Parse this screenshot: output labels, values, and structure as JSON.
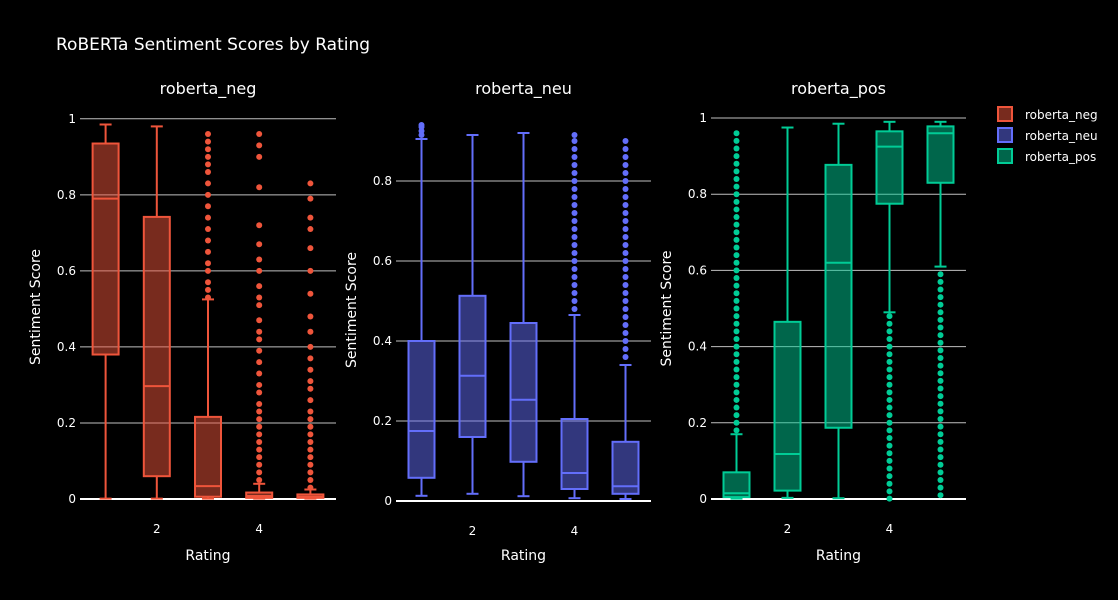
{
  "chart_data": {
    "type": "box",
    "title": "RoBERTa Sentiment Scores by Rating",
    "colors": {
      "background": "#000000",
      "grid": "#bfbfbf",
      "roberta_neg": "#ef553b",
      "roberta_neu": "#636efa",
      "roberta_pos": "#00cc96"
    },
    "legend": {
      "position": "top-right",
      "entries": [
        "roberta_neg",
        "roberta_neu",
        "roberta_pos"
      ]
    },
    "panels": [
      {
        "name": "roberta_neg",
        "title": "roberta_neg",
        "xlabel": "Rating",
        "ylabel": "Sentiment Score",
        "xlim": [
          0.5,
          5.5
        ],
        "ylim": [
          0,
          1.01
        ],
        "xticks": [
          2,
          4
        ],
        "yticks": [
          0,
          0.2,
          0.4,
          0.6,
          0.8,
          1
        ],
        "ytick_labels": [
          "0",
          "0.2",
          "0.4",
          "0.6",
          "0.8",
          "1"
        ],
        "boxes": [
          {
            "x": 1,
            "min": 0.001,
            "q1": 0.38,
            "median": 0.79,
            "q3": 0.935,
            "max": 0.985,
            "outliers": []
          },
          {
            "x": 2,
            "min": 0.001,
            "q1": 0.06,
            "median": 0.297,
            "q3": 0.742,
            "max": 0.98,
            "outliers": []
          },
          {
            "x": 3,
            "min": 0.001,
            "q1": 0.006,
            "median": 0.034,
            "q3": 0.216,
            "max": 0.525,
            "outliers": [
              0.53,
              0.55,
              0.57,
              0.6,
              0.62,
              0.65,
              0.68,
              0.71,
              0.74,
              0.77,
              0.8,
              0.83,
              0.86,
              0.88,
              0.9,
              0.92,
              0.94,
              0.96
            ]
          },
          {
            "x": 4,
            "min": 0.001,
            "q1": 0.003,
            "median": 0.008,
            "q3": 0.017,
            "max": 0.04,
            "outliers": [
              0.05,
              0.07,
              0.09,
              0.11,
              0.13,
              0.15,
              0.17,
              0.19,
              0.21,
              0.23,
              0.25,
              0.28,
              0.3,
              0.33,
              0.36,
              0.39,
              0.42,
              0.44,
              0.47,
              0.51,
              0.53,
              0.56,
              0.6,
              0.63,
              0.67,
              0.72,
              0.82,
              0.9,
              0.93,
              0.96
            ]
          },
          {
            "x": 5,
            "min": 0.001,
            "q1": 0.003,
            "median": 0.006,
            "q3": 0.012,
            "max": 0.025,
            "outliers": [
              0.03,
              0.05,
              0.07,
              0.09,
              0.11,
              0.13,
              0.15,
              0.17,
              0.19,
              0.21,
              0.23,
              0.26,
              0.29,
              0.31,
              0.34,
              0.37,
              0.4,
              0.44,
              0.48,
              0.54,
              0.6,
              0.66,
              0.71,
              0.74,
              0.79,
              0.83
            ]
          }
        ]
      },
      {
        "name": "roberta_neu",
        "title": "roberta_neu",
        "xlabel": "Rating",
        "ylabel": "Sentiment Score",
        "xlim": [
          0.5,
          5.5
        ],
        "ylim": [
          0,
          0.955
        ],
        "xticks": [
          2,
          4
        ],
        "yticks": [
          0,
          0.2,
          0.4,
          0.6,
          0.8
        ],
        "ytick_labels": [
          "0",
          "0.2",
          "0.4",
          "0.6",
          "0.8"
        ],
        "boxes": [
          {
            "x": 1,
            "min": 0.013,
            "q1": 0.058,
            "median": 0.175,
            "q3": 0.4,
            "max": 0.905,
            "outliers": [
              0.915,
              0.925,
              0.935,
              0.94
            ]
          },
          {
            "x": 2,
            "min": 0.018,
            "q1": 0.16,
            "median": 0.313,
            "q3": 0.513,
            "max": 0.915,
            "outliers": []
          },
          {
            "x": 3,
            "min": 0.012,
            "q1": 0.098,
            "median": 0.253,
            "q3": 0.445,
            "max": 0.92,
            "outliers": []
          },
          {
            "x": 4,
            "min": 0.007,
            "q1": 0.03,
            "median": 0.07,
            "q3": 0.205,
            "max": 0.465,
            "outliers": [
              0.48,
              0.5,
              0.52,
              0.54,
              0.56,
              0.58,
              0.6,
              0.62,
              0.64,
              0.66,
              0.68,
              0.7,
              0.72,
              0.74,
              0.76,
              0.78,
              0.8,
              0.82,
              0.84,
              0.86,
              0.88,
              0.9,
              0.915
            ]
          },
          {
            "x": 5,
            "min": 0.005,
            "q1": 0.018,
            "median": 0.037,
            "q3": 0.148,
            "max": 0.34,
            "outliers": [
              0.36,
              0.38,
              0.4,
              0.42,
              0.44,
              0.46,
              0.48,
              0.5,
              0.52,
              0.54,
              0.56,
              0.58,
              0.6,
              0.62,
              0.64,
              0.66,
              0.68,
              0.7,
              0.72,
              0.74,
              0.76,
              0.78,
              0.8,
              0.82,
              0.84,
              0.86,
              0.88,
              0.9
            ]
          }
        ]
      },
      {
        "name": "roberta_pos",
        "title": "roberta_pos",
        "xlabel": "Rating",
        "ylabel": "Sentiment Score",
        "xlim": [
          0.5,
          5.5
        ],
        "ylim": [
          0,
          1.0
        ],
        "xticks": [
          2,
          4
        ],
        "yticks": [
          0,
          0.2,
          0.4,
          0.6,
          0.8,
          1
        ],
        "ytick_labels": [
          "0",
          "0.2",
          "0.4",
          "0.6",
          "0.8",
          "1"
        ],
        "boxes": [
          {
            "x": 1,
            "min": 0.001,
            "q1": 0.005,
            "median": 0.015,
            "q3": 0.07,
            "max": 0.17,
            "outliers": [
              0.18,
              0.2,
              0.22,
              0.24,
              0.26,
              0.28,
              0.3,
              0.32,
              0.34,
              0.36,
              0.38,
              0.4,
              0.42,
              0.44,
              0.46,
              0.48,
              0.5,
              0.52,
              0.54,
              0.56,
              0.58,
              0.6,
              0.62,
              0.64,
              0.66,
              0.68,
              0.7,
              0.72,
              0.74,
              0.76,
              0.78,
              0.8,
              0.82,
              0.84,
              0.86,
              0.88,
              0.9,
              0.92,
              0.94,
              0.96
            ]
          },
          {
            "x": 2,
            "min": 0.003,
            "q1": 0.022,
            "median": 0.118,
            "q3": 0.465,
            "max": 0.975,
            "outliers": []
          },
          {
            "x": 3,
            "min": 0.002,
            "q1": 0.187,
            "median": 0.62,
            "q3": 0.877,
            "max": 0.985,
            "outliers": []
          },
          {
            "x": 4,
            "min": 0.49,
            "q1": 0.775,
            "median": 0.925,
            "q3": 0.965,
            "max": 0.99,
            "outliers": [
              0.001,
              0.02,
              0.04,
              0.06,
              0.08,
              0.1,
              0.12,
              0.14,
              0.16,
              0.18,
              0.2,
              0.22,
              0.24,
              0.26,
              0.28,
              0.3,
              0.32,
              0.34,
              0.36,
              0.38,
              0.4,
              0.42,
              0.44,
              0.46,
              0.48
            ]
          },
          {
            "x": 5,
            "min": 0.61,
            "q1": 0.83,
            "median": 0.96,
            "q3": 0.978,
            "max": 0.99,
            "outliers": [
              0.01,
              0.03,
              0.05,
              0.07,
              0.09,
              0.11,
              0.13,
              0.15,
              0.17,
              0.19,
              0.21,
              0.23,
              0.25,
              0.27,
              0.29,
              0.31,
              0.33,
              0.35,
              0.37,
              0.39,
              0.41,
              0.43,
              0.45,
              0.47,
              0.49,
              0.51,
              0.53,
              0.55,
              0.57,
              0.59
            ]
          }
        ]
      }
    ]
  }
}
